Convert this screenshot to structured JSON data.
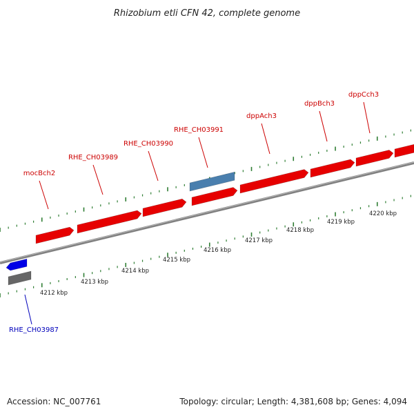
{
  "title": "Rhizobium etli CFN 42, complete genome",
  "footer": {
    "accession": "Accession: NC_007761",
    "summary": "Topology: circular; Length: 4,381,608 bp; Genes: 4,094"
  },
  "colors": {
    "forward_gene": "#e60000",
    "reverse_gene": "#0000e6",
    "highlight_gene": "#4a7fae",
    "gray_gene": "#666666",
    "tick": "#2e7d32",
    "backbone": "#808080",
    "label_red": "#cc0000",
    "label_blue": "#0000bb"
  },
  "axis": {
    "kbp_labels": [
      "4212 kbp",
      "4213 kbp",
      "4214 kbp",
      "4215 kbp",
      "4216 kbp",
      "4217 kbp",
      "4218 kbp",
      "4219 kbp",
      "4220 kbp"
    ]
  },
  "genes": [
    {
      "name": "mocBch2",
      "strand": "+"
    },
    {
      "name": "RHE_CH03989",
      "strand": "+"
    },
    {
      "name": "RHE_CH03990",
      "strand": "+"
    },
    {
      "name": "RHE_CH03991",
      "strand": "+"
    },
    {
      "name": "dppAch3",
      "strand": "+"
    },
    {
      "name": "dppBch3",
      "strand": "+"
    },
    {
      "name": "dppCch3",
      "strand": "+"
    },
    {
      "name": "RHE_CH03987",
      "strand": "-"
    }
  ]
}
